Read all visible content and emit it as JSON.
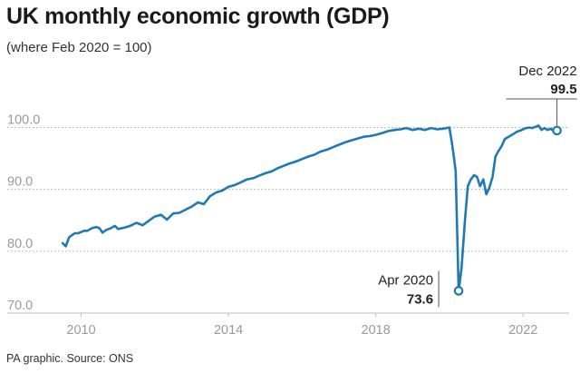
{
  "title": "UK monthly economic growth (GDP)",
  "subtitle": "(where Feb 2020 = 100)",
  "source": "PA graphic. Source: ONS",
  "colors": {
    "line": "#1f7ab3",
    "grid": "#bdbdbd",
    "tick": "#9a9a9a",
    "text": "#222222"
  },
  "chart_data": {
    "type": "line",
    "title": "UK monthly economic growth (GDP)",
    "subtitle": "(where Feb 2020 = 100)",
    "xlabel": "",
    "ylabel": "",
    "xlim": [
      2009.15,
      2023.25
    ],
    "ylim": [
      70,
      103
    ],
    "x_ticks": [
      2010,
      2014,
      2018,
      2022
    ],
    "x_tick_labels": [
      "2010",
      "2014",
      "2018",
      "2022"
    ],
    "y_ticks": [
      70,
      80,
      90,
      100
    ],
    "y_tick_labels": [
      "70.0",
      "80.0",
      "90.0",
      "100.0"
    ],
    "grid": "horizontal",
    "legend": "none",
    "series": [
      {
        "x": [
          2009.5,
          2009.58,
          2009.67,
          2009.75,
          2009.83,
          2009.92,
          2010.0,
          2010.08,
          2010.17,
          2010.25,
          2010.33,
          2010.42,
          2010.5,
          2010.58,
          2010.67,
          2010.75,
          2010.83,
          2010.92,
          2011.0,
          2011.17,
          2011.33,
          2011.5,
          2011.67,
          2011.83,
          2012.0,
          2012.17,
          2012.33,
          2012.5,
          2012.67,
          2012.83,
          2013.0,
          2013.17,
          2013.33,
          2013.5,
          2013.67,
          2013.83,
          2014.0,
          2014.17,
          2014.33,
          2014.5,
          2014.67,
          2014.83,
          2015.0,
          2015.17,
          2015.33,
          2015.5,
          2015.67,
          2015.83,
          2016.0,
          2016.17,
          2016.33,
          2016.5,
          2016.67,
          2016.83,
          2017.0,
          2017.17,
          2017.33,
          2017.5,
          2017.67,
          2017.83,
          2018.0,
          2018.17,
          2018.33,
          2018.5,
          2018.67,
          2018.83,
          2019.0,
          2019.17,
          2019.33,
          2019.5,
          2019.67,
          2019.83,
          2020.0,
          2020.08,
          2020.17,
          2020.25,
          2020.33,
          2020.42,
          2020.5,
          2020.58,
          2020.67,
          2020.75,
          2020.83,
          2020.92,
          2021.0,
          2021.08,
          2021.17,
          2021.25,
          2021.33,
          2021.42,
          2021.5,
          2021.58,
          2021.67,
          2021.75,
          2021.83,
          2021.92,
          2022.0,
          2022.08,
          2022.17,
          2022.25,
          2022.33,
          2022.42,
          2022.5,
          2022.58,
          2022.67,
          2022.75,
          2022.83,
          2022.92
        ],
        "y": [
          81.3,
          80.8,
          82.2,
          82.6,
          82.9,
          82.9,
          83.1,
          83.3,
          83.3,
          83.6,
          83.8,
          83.9,
          83.7,
          83.0,
          83.4,
          83.6,
          83.8,
          84.1,
          83.6,
          83.8,
          84.1,
          84.6,
          84.2,
          84.9,
          85.6,
          85.9,
          85.1,
          86.1,
          86.2,
          86.7,
          87.2,
          87.9,
          87.6,
          88.9,
          89.5,
          89.8,
          90.4,
          90.7,
          91.1,
          91.6,
          91.8,
          92.2,
          92.6,
          92.9,
          93.4,
          93.8,
          94.2,
          94.5,
          94.9,
          95.3,
          95.6,
          96.1,
          96.4,
          96.8,
          97.2,
          97.6,
          97.9,
          98.2,
          98.5,
          98.6,
          98.8,
          99.1,
          99.4,
          99.6,
          99.7,
          99.9,
          99.6,
          99.8,
          99.6,
          99.9,
          99.7,
          99.8,
          100.0,
          97.0,
          93.0,
          73.6,
          77.3,
          84.9,
          90.5,
          91.6,
          92.3,
          92.0,
          90.5,
          91.6,
          89.2,
          90.2,
          92.0,
          95.3,
          96.2,
          97.0,
          98.1,
          98.4,
          98.7,
          99.0,
          99.3,
          99.5,
          99.7,
          99.9,
          100.0,
          99.9,
          100.1,
          100.3,
          99.6,
          99.9,
          99.6,
          99.8,
          99.4,
          99.5
        ]
      }
    ],
    "annotations": [
      {
        "label": "Apr 2020",
        "value": "73.6",
        "x": 2020.25,
        "y": 73.6
      },
      {
        "label": "Dec 2022",
        "value": "99.5",
        "x": 2022.92,
        "y": 99.5
      }
    ]
  }
}
